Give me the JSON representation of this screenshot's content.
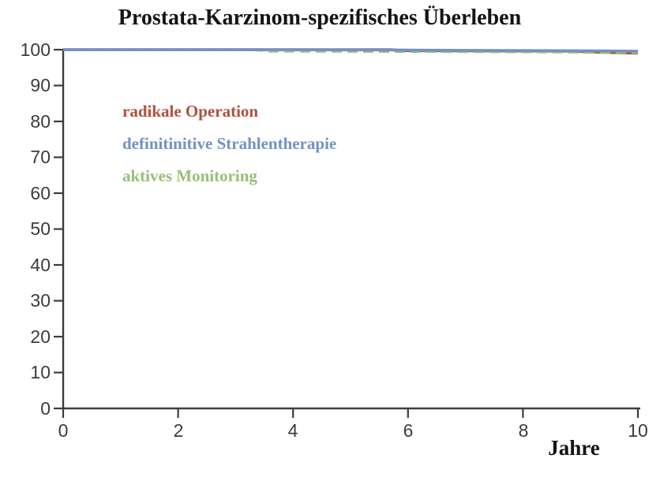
{
  "title": "Prostata-Karzinom-spezifisches Überleben",
  "axis_color": "#3c3c3c",
  "background_color": "#ffffff",
  "chart_data": {
    "type": "line",
    "title": "Prostata-Karzinom-spezifisches Überleben",
    "xlabel": "Jahre",
    "ylabel": "",
    "xlim": [
      0,
      10
    ],
    "ylim": [
      0,
      100
    ],
    "xticks": [
      0,
      2,
      4,
      6,
      8,
      10
    ],
    "yticks": [
      0,
      10,
      20,
      30,
      40,
      50,
      60,
      70,
      80,
      90,
      100
    ],
    "grid": false,
    "legend_position": "upper-left-inside",
    "series": [
      {
        "name": "radikale Operation",
        "color": "#b1503f",
        "style": "solid",
        "z": 1,
        "points": [
          [
            0,
            100
          ],
          [
            5.7,
            100
          ],
          [
            6,
            99.7
          ],
          [
            8.8,
            99.6
          ],
          [
            9.3,
            99.3
          ],
          [
            10,
            99.0
          ]
        ]
      },
      {
        "name": "definitinitive Strahlentherapie",
        "color": "#7292c4",
        "style": "solid",
        "z": 3,
        "points": [
          [
            0,
            100
          ],
          [
            3,
            100
          ],
          [
            6,
            99.9
          ],
          [
            7,
            99.8
          ],
          [
            9,
            99.7
          ],
          [
            10,
            99.6
          ]
        ]
      },
      {
        "name": "aktives Monitoring",
        "color": "#96c077",
        "style": "dashed",
        "z": 2,
        "points": [
          [
            0,
            100
          ],
          [
            3.3,
            100
          ],
          [
            3.6,
            99.6
          ],
          [
            6,
            99.5
          ],
          [
            8,
            99.4
          ],
          [
            10,
            99.2
          ]
        ]
      }
    ]
  }
}
